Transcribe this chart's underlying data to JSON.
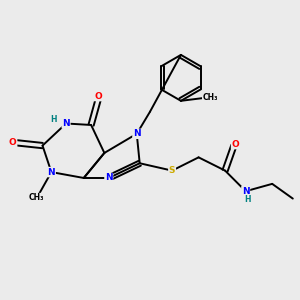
{
  "background_color": "#ebebeb",
  "atom_colors": {
    "N": "#0000ff",
    "O": "#ff0000",
    "S": "#ccaa00",
    "C": "#000000",
    "H": "#008080"
  },
  "bond_color": "#000000",
  "fs": 6.5,
  "fs2": 5.5
}
